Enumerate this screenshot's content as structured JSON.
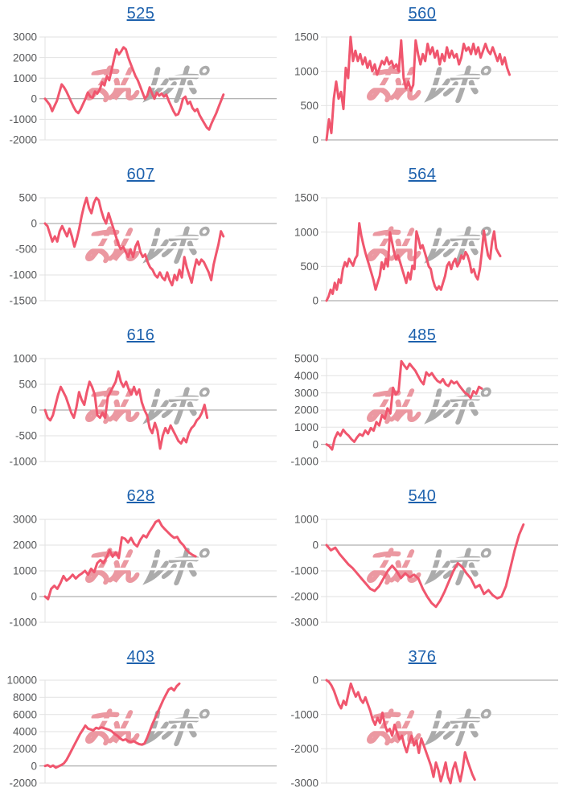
{
  "page": {
    "background": "#ffffff"
  },
  "style": {
    "line_color": "#f0566e",
    "grid_color": "#e2e2e2",
    "baseline_color": "#9b9b9b",
    "axis_label_color": "#57585a",
    "title_color": "#1d61ad"
  },
  "watermark": {
    "text": "みんレポ",
    "pink_color": "#eb98a1",
    "gray_color": "#ababab"
  },
  "chart_data": [
    {
      "type": "line",
      "title": "525",
      "ylim": [
        -2000,
        3000
      ],
      "ytick": 1000,
      "end_frac": 0.77,
      "legend": "none",
      "grid": true,
      "values": [
        0,
        -150,
        -300,
        -600,
        -350,
        -100,
        300,
        700,
        550,
        350,
        100,
        -150,
        -400,
        -600,
        -700,
        -500,
        -250,
        0,
        300,
        100,
        50,
        350,
        250,
        450,
        800,
        650,
        1100,
        900,
        1400,
        1900,
        2400,
        2150,
        2300,
        2500,
        2400,
        2000,
        1700,
        1400,
        1100,
        900,
        600,
        300,
        0,
        150,
        550,
        250,
        0,
        300,
        150,
        250,
        100,
        200,
        -100,
        -350,
        -600,
        -800,
        -750,
        -450,
        0,
        100,
        -250,
        -150,
        -450,
        -600,
        -500,
        -800,
        -1000,
        -1200,
        -1400,
        -1500,
        -1200,
        -950,
        -700,
        -400,
        -100,
        200
      ]
    },
    {
      "type": "line",
      "title": "560",
      "ylim": [
        0,
        1500
      ],
      "ytick": 500,
      "end_frac": 0.79,
      "legend": "none",
      "grid": true,
      "values": [
        0,
        300,
        100,
        600,
        850,
        600,
        700,
        450,
        1050,
        900,
        1500,
        1150,
        1300,
        1150,
        1250,
        1100,
        1200,
        1050,
        1150,
        1000,
        1100,
        950,
        1050,
        1150,
        1100,
        1200,
        1100,
        1150,
        1050,
        1100,
        1000,
        1450,
        900,
        750,
        850,
        720,
        800,
        1450,
        1250,
        1100,
        1250,
        1150,
        1400,
        1250,
        1350,
        1200,
        1300,
        1100,
        1250,
        1150,
        1350,
        1200,
        1300,
        1200,
        1250,
        1100,
        1200,
        1400,
        1300,
        1350,
        1250,
        1400,
        1250,
        1350,
        1200,
        1300,
        1400,
        1300,
        1250,
        1350,
        1250,
        1150,
        1250,
        1100,
        1200,
        1050,
        950
      ]
    },
    {
      "type": "line",
      "title": "607",
      "ylim": [
        -1500,
        500
      ],
      "ytick": 500,
      "end_frac": 0.77,
      "legend": "none",
      "grid": true,
      "values": [
        0,
        -50,
        -200,
        -350,
        -250,
        -350,
        -150,
        -50,
        -150,
        -250,
        -100,
        -250,
        -450,
        -300,
        -100,
        150,
        350,
        500,
        300,
        200,
        400,
        500,
        450,
        250,
        100,
        0,
        200,
        50,
        -100,
        -250,
        -400,
        -500,
        -450,
        -550,
        -650,
        -500,
        -650,
        -450,
        -350,
        -550,
        -650,
        -600,
        -750,
        -850,
        -900,
        -1000,
        -1050,
        -950,
        -1050,
        -1100,
        -950,
        -1100,
        -1200,
        -1000,
        -1100,
        -900,
        -1050,
        -650,
        -850,
        -1000,
        -1150,
        -900,
        -700,
        -800,
        -700,
        -750,
        -850,
        -950,
        -1100,
        -800,
        -600,
        -400,
        -150,
        -250
      ]
    },
    {
      "type": "line",
      "title": "564",
      "ylim": [
        0,
        1500
      ],
      "ytick": 500,
      "end_frac": 0.75,
      "legend": "none",
      "grid": true,
      "values": [
        0,
        60,
        160,
        100,
        260,
        160,
        310,
        260,
        460,
        560,
        500,
        610,
        560,
        510,
        610,
        660,
        1130,
        950,
        820,
        700,
        600,
        500,
        400,
        300,
        160,
        260,
        360,
        560,
        460,
        610,
        500,
        1000,
        860,
        710,
        600,
        660,
        560,
        460,
        360,
        260,
        410,
        310,
        510,
        460,
        1010,
        900,
        760,
        810,
        710,
        610,
        500,
        460,
        310,
        210,
        160,
        210,
        160,
        260,
        360,
        510,
        560,
        460,
        560,
        610,
        500,
        560,
        660,
        610,
        710,
        660,
        560,
        410,
        460,
        360,
        310,
        460,
        710,
        1020,
        830,
        660,
        610,
        860,
        1010,
        760,
        700,
        650
      ]
    },
    {
      "type": "line",
      "title": "616",
      "ylim": [
        -1000,
        1000
      ],
      "ytick": 500,
      "end_frac": 0.7,
      "legend": "none",
      "grid": true,
      "values": [
        0,
        -150,
        -200,
        -100,
        100,
        300,
        450,
        350,
        250,
        100,
        -50,
        -150,
        50,
        350,
        200,
        100,
        350,
        550,
        450,
        300,
        -100,
        -150,
        -50,
        -150,
        250,
        350,
        450,
        550,
        750,
        550,
        450,
        550,
        400,
        300,
        450,
        300,
        400,
        150,
        0,
        -100,
        -350,
        -450,
        -250,
        -400,
        -750,
        -500,
        -350,
        -450,
        -300,
        -400,
        -500,
        -600,
        -650,
        -550,
        -625,
        -450,
        -350,
        -300,
        -200,
        -150,
        -50,
        100,
        -150
      ]
    },
    {
      "type": "line",
      "title": "485",
      "ylim": [
        -1000,
        5000
      ],
      "ytick": 1000,
      "end_frac": 0.67,
      "legend": "none",
      "grid": true,
      "values": [
        0,
        -100,
        -300,
        350,
        700,
        500,
        850,
        650,
        500,
        300,
        150,
        400,
        600,
        500,
        800,
        600,
        950,
        800,
        1300,
        1100,
        1700,
        1500,
        2100,
        1800,
        3300,
        2900,
        3100,
        4850,
        4600,
        4400,
        4700,
        4500,
        4300,
        4000,
        3700,
        3500,
        4200,
        4000,
        4150,
        3900,
        3700,
        3600,
        3800,
        3500,
        3400,
        3700,
        3550,
        3650,
        3400,
        3200,
        3000,
        2900,
        2700,
        3100,
        2950,
        3350,
        3250
      ]
    },
    {
      "type": "line",
      "title": "628",
      "ylim": [
        -1000,
        3000
      ],
      "ytick": 1000,
      "end_frac": 0.65,
      "legend": "none",
      "grid": true,
      "values": [
        0,
        -100,
        300,
        420,
        300,
        520,
        800,
        620,
        720,
        850,
        700,
        820,
        900,
        1000,
        850,
        1080,
        950,
        1300,
        1420,
        1300,
        1520,
        1800,
        1550,
        1720,
        1500,
        2300,
        2250,
        2100,
        2280,
        2050,
        1950,
        2200,
        2380,
        2300,
        2520,
        2700,
        2900,
        2970,
        2750,
        2620,
        2500,
        2380,
        2280,
        2320,
        2120,
        2000,
        1820,
        1700,
        1620,
        1560
      ]
    },
    {
      "type": "line",
      "title": "540",
      "ylim": [
        -3000,
        1000
      ],
      "ytick": 1000,
      "end_frac": 0.85,
      "legend": "none",
      "grid": true,
      "values": [
        0,
        -200,
        -100,
        -350,
        -550,
        -750,
        -900,
        -1100,
        -1300,
        -1500,
        -1700,
        -1780,
        -1600,
        -1300,
        -1000,
        -800,
        -1000,
        -1280,
        -1100,
        -1250,
        -1150,
        -1300,
        -1700,
        -2000,
        -2250,
        -2400,
        -2150,
        -1800,
        -1400,
        -1000,
        -700,
        -850,
        -1100,
        -1300,
        -1650,
        -1550,
        -1900,
        -1750,
        -1950,
        -2070,
        -2000,
        -1600,
        -900,
        -200,
        400,
        800
      ]
    },
    {
      "type": "line",
      "title": "403",
      "ylim": [
        -2000,
        10000
      ],
      "ytick": 2000,
      "end_frac": 0.58,
      "legend": "none",
      "grid": true,
      "values": [
        0,
        100,
        -100,
        50,
        -200,
        -50,
        100,
        300,
        700,
        1300,
        1900,
        2500,
        3100,
        3700,
        4200,
        4700,
        4350,
        4250,
        4150,
        4450,
        4350,
        4500,
        4400,
        4300,
        4200,
        4000,
        3700,
        3500,
        3200,
        3000,
        3100,
        2900,
        2800,
        2900,
        2700,
        2550,
        2480,
        2600,
        3300,
        4100,
        4900,
        5600,
        6300,
        7000,
        7700,
        8300,
        8900,
        9100,
        8800,
        9300,
        9600
      ]
    },
    {
      "type": "line",
      "title": "376",
      "ylim": [
        -3000,
        0
      ],
      "ytick": 1000,
      "end_frac": 0.64,
      "legend": "none",
      "grid": true,
      "values": [
        0,
        -50,
        -150,
        -300,
        -500,
        -700,
        -820,
        -600,
        -720,
        -400,
        -100,
        -300,
        -480,
        -350,
        -560,
        -660,
        -500,
        -700,
        -900,
        -1150,
        -1300,
        -1100,
        -1250,
        -950,
        -1300,
        -1500,
        -1420,
        -1620,
        -1300,
        -1520,
        -1720,
        -1620,
        -1900,
        -2100,
        -1820,
        -1620,
        -1900,
        -1760,
        -2120,
        -1700,
        -1900,
        -2100,
        -2300,
        -2500,
        -2820,
        -2400,
        -2620,
        -2950,
        -2700,
        -2400,
        -2820,
        -3000,
        -2600,
        -2400,
        -2700,
        -2950,
        -2600,
        -2100,
        -2350,
        -2550,
        -2750,
        -2900
      ]
    }
  ]
}
